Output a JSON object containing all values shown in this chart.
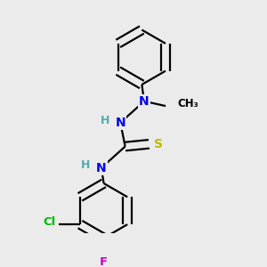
{
  "background_color": "#ebebeb",
  "atom_colors": {
    "C": "#000000",
    "N": "#0000ee",
    "S": "#bbbb00",
    "H": "#55aaaa",
    "Cl": "#00bb00",
    "F": "#cc00cc"
  },
  "figsize": [
    3.0,
    3.0
  ],
  "dpi": 100,
  "bond_lw": 1.6,
  "double_sep": 0.018
}
